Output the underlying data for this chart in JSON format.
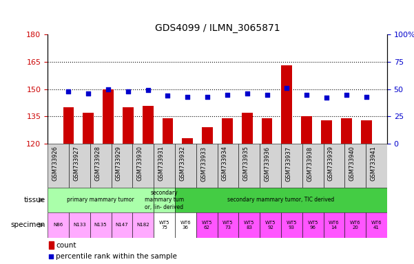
{
  "title": "GDS4099 / ILMN_3065871",
  "samples": [
    "GSM733926",
    "GSM733927",
    "GSM733928",
    "GSM733929",
    "GSM733930",
    "GSM733931",
    "GSM733932",
    "GSM733933",
    "GSM733934",
    "GSM733935",
    "GSM733936",
    "GSM733937",
    "GSM733938",
    "GSM733939",
    "GSM733940",
    "GSM733941"
  ],
  "counts": [
    140,
    137,
    150,
    140,
    141,
    134,
    123,
    129,
    134,
    137,
    134,
    163,
    135,
    133,
    134,
    133
  ],
  "percentiles": [
    48,
    46,
    50,
    48,
    49,
    44,
    43,
    43,
    45,
    46,
    45,
    51,
    45,
    42,
    45,
    43
  ],
  "bar_color": "#cc0000",
  "dot_color": "#0000cc",
  "ylim_left": [
    120,
    180
  ],
  "ylim_right": [
    0,
    100
  ],
  "yticks_left": [
    120,
    135,
    150,
    165,
    180
  ],
  "yticks_right": [
    0,
    25,
    50,
    75,
    100
  ],
  "ytick_labels_right": [
    "0",
    "25",
    "50",
    "75",
    "100%"
  ],
  "tissue_groups": [
    {
      "label": "primary mammary tumor",
      "start": 0,
      "end": 4,
      "color": "#aaffaa"
    },
    {
      "label": "secondary\nmammary tum\nor, lin- derived",
      "start": 5,
      "end": 5,
      "color": "#aaffaa"
    },
    {
      "label": "secondary mammary tumor, TIC derived",
      "start": 6,
      "end": 15,
      "color": "#44cc44"
    }
  ],
  "specimen_labels": [
    "N86",
    "N133",
    "N135",
    "N147",
    "N182",
    "WT5\n75",
    "WT6\n36",
    "WT5\n62",
    "WT5\n73",
    "WT5\n83",
    "WT5\n92",
    "WT5\n93",
    "WT5\n96",
    "WT6\n14",
    "WT6\n20",
    "WT6\n41"
  ],
  "specimen_colors": [
    "#ffaaff",
    "#ffaaff",
    "#ffaaff",
    "#ffaaff",
    "#ffaaff",
    "#ffffff",
    "#ffffff",
    "#ff55ff",
    "#ff55ff",
    "#ff55ff",
    "#ff55ff",
    "#ff55ff",
    "#ff55ff",
    "#ff55ff",
    "#ff55ff",
    "#ff55ff"
  ],
  "legend_items": [
    {
      "color": "#cc0000",
      "label": "count"
    },
    {
      "color": "#0000cc",
      "label": "percentile rank within the sample"
    }
  ]
}
